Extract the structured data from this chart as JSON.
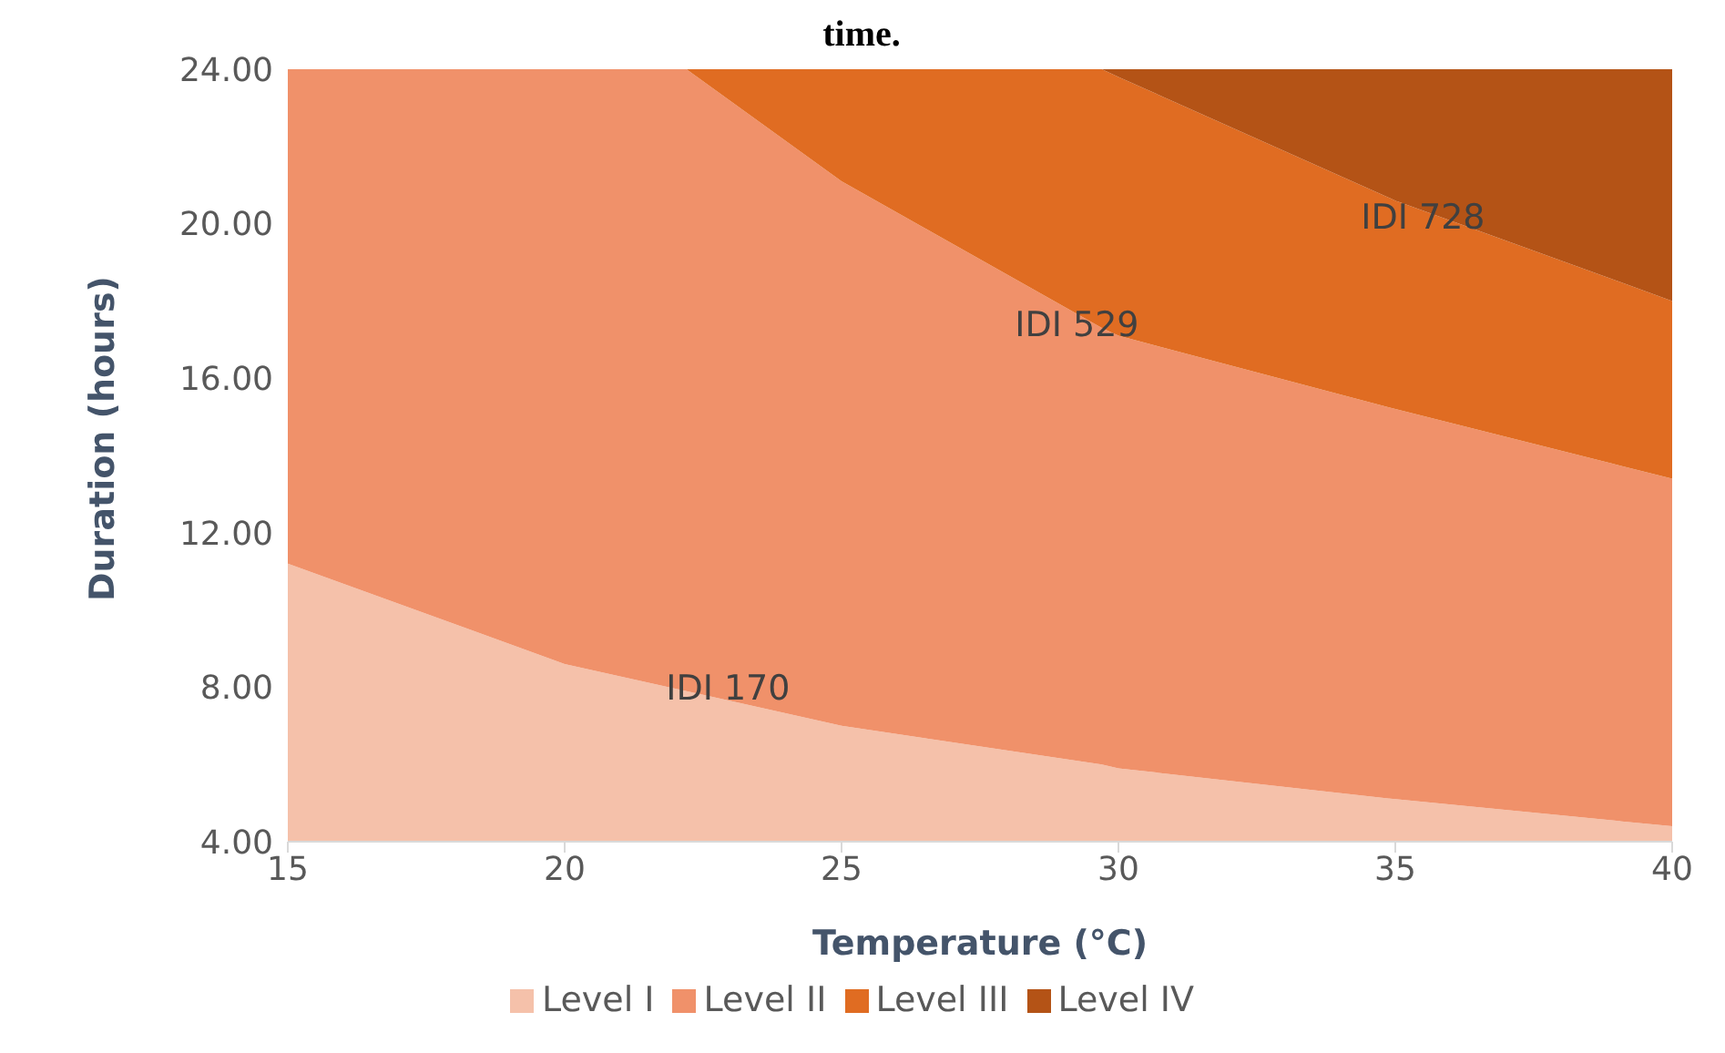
{
  "chart_data": {
    "type": "area",
    "title": "time.",
    "xlabel": "Temperature (°C)",
    "ylabel": "Duration (hours)",
    "x": [
      15,
      20,
      22.2,
      25,
      29.7,
      30,
      35,
      40
    ],
    "series": [
      {
        "name": "Level I",
        "color": "#f5c1aa",
        "values": [
          11.2,
          8.6,
          7.9,
          7.0,
          6.0,
          5.9,
          5.1,
          4.4
        ]
      },
      {
        "name": "Level II",
        "color": "#f0916a",
        "values": [
          24,
          24,
          24,
          21.1,
          17.3,
          17.1,
          15.2,
          13.4
        ]
      },
      {
        "name": "Level III",
        "color": "#e06c22",
        "values": [
          null,
          null,
          24,
          24,
          24,
          23.8,
          20.6,
          18.0
        ]
      },
      {
        "name": "Level IV",
        "color": "#b45316",
        "values": [
          null,
          null,
          null,
          null,
          24,
          24,
          24,
          24
        ]
      }
    ],
    "xlim": [
      15,
      40
    ],
    "xticks": [
      15,
      20,
      25,
      30,
      35,
      40
    ],
    "ylim": [
      4,
      24
    ],
    "yticks": [
      {
        "value": 4,
        "label": "4.00"
      },
      {
        "value": 8,
        "label": "8.00"
      },
      {
        "value": 12,
        "label": "12.00"
      },
      {
        "value": 16,
        "label": "16.00"
      },
      {
        "value": 20,
        "label": "20.00"
      },
      {
        "value": 24,
        "label": "24.00"
      }
    ],
    "annotations": [
      "IDI 170",
      "IDI 529",
      "IDI 728"
    ],
    "grid": false,
    "legend": "bottom"
  }
}
